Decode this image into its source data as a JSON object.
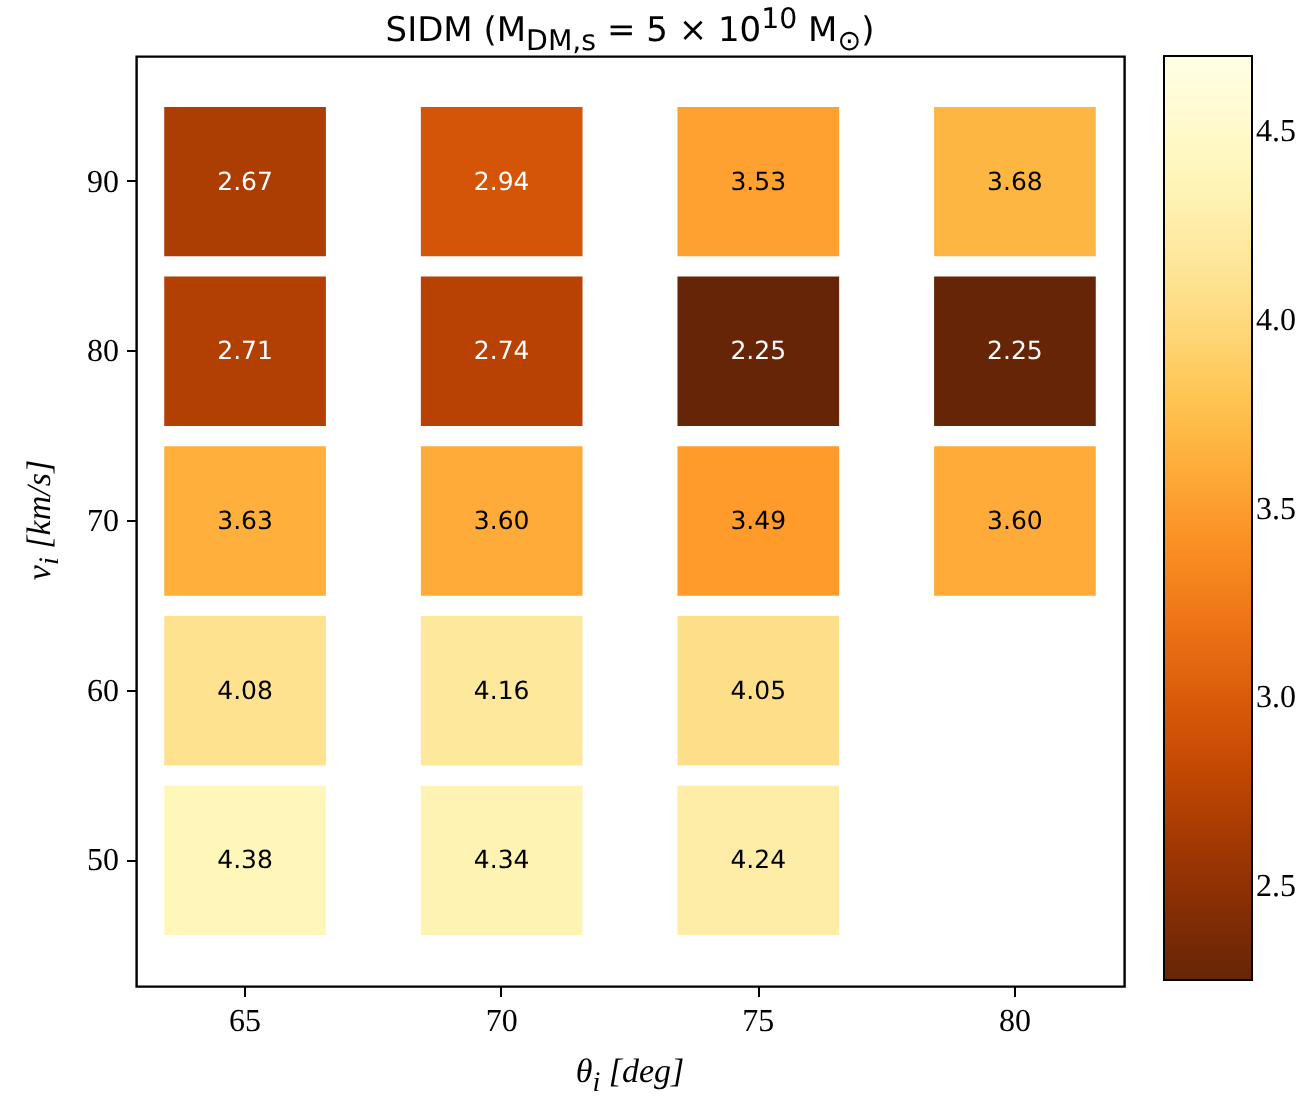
{
  "chart_data": {
    "type": "heatmap",
    "title": "SIDM (M$_{DM,s}$ = 5 × 10$^{10}$ M$_{⊙}$)",
    "xlabel": "θ$_{i}$ [deg]",
    "ylabel": "v$_{i}$ [km/s]",
    "categories": [
      "65",
      "70",
      "75",
      "80"
    ],
    "y_categories": [
      "90",
      "80",
      "70",
      "60",
      "50"
    ],
    "cells": [
      [
        2.67,
        2.94,
        3.53,
        3.68
      ],
      [
        2.71,
        2.74,
        2.25,
        2.25
      ],
      [
        3.63,
        3.6,
        3.49,
        3.6
      ],
      [
        4.08,
        4.16,
        4.05,
        null
      ],
      [
        4.38,
        4.34,
        4.24,
        null
      ]
    ],
    "cell_labels": [
      [
        "2.67",
        "2.94",
        "3.53",
        "3.68"
      ],
      [
        "2.71",
        "2.74",
        "2.25",
        "2.25"
      ],
      [
        "3.63",
        "3.60",
        "3.49",
        "3.60"
      ],
      [
        "4.08",
        "4.16",
        "4.05",
        null
      ],
      [
        "4.38",
        "4.34",
        "4.24",
        null
      ]
    ],
    "clim": [
      2.25,
      4.7
    ],
    "cticks": [
      2.5,
      {
        "value": 3,
        "label": "3.0"
      },
      3.5,
      {
        "value": 4,
        "label": "4.0"
      },
      4.5
    ]
  }
}
